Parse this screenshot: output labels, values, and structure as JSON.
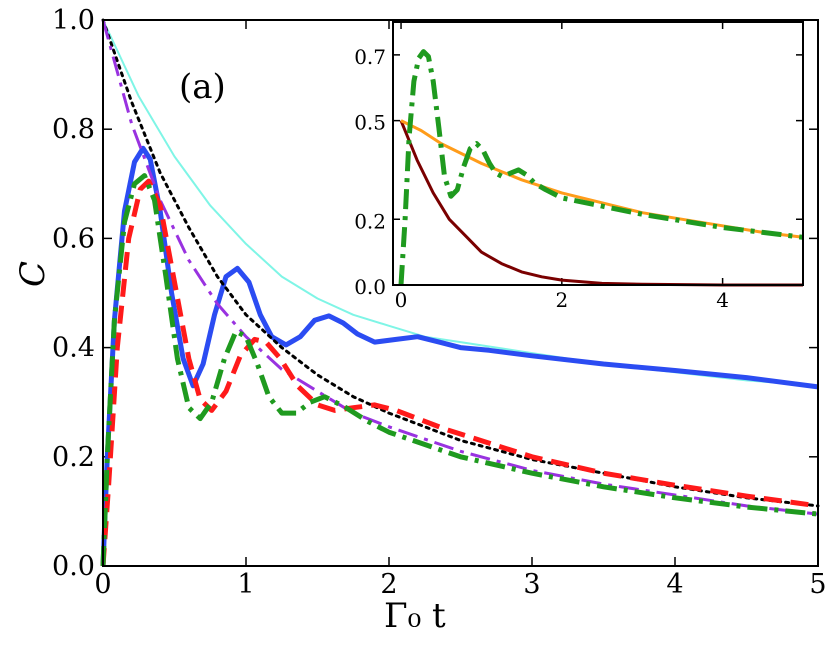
{
  "chart_data": [
    {
      "type": "line",
      "panel": "main",
      "annotation": "(a)",
      "xlabel": "Γ₀ t",
      "ylabel": "C",
      "xlim": [
        0,
        5
      ],
      "ylim": [
        0,
        1
      ],
      "xticks": [
        "0",
        "1",
        "2",
        "3",
        "4",
        "5"
      ],
      "yticks": [
        "0.0",
        "0.2",
        "0.4",
        "0.6",
        "0.8",
        "1.0"
      ],
      "series": [
        {
          "name": "envelope-cyan",
          "color": "#7ff5e6",
          "style": "solid",
          "width": 2,
          "x": [
            0,
            0.25,
            0.5,
            0.75,
            1.0,
            1.25,
            1.5,
            1.75,
            2.0,
            2.25,
            2.5,
            3.0,
            3.5,
            4.0,
            4.5,
            5.0
          ],
          "y": [
            1.0,
            0.86,
            0.75,
            0.66,
            0.59,
            0.53,
            0.49,
            0.46,
            0.44,
            0.42,
            0.41,
            0.39,
            0.37,
            0.355,
            0.34,
            0.33
          ]
        },
        {
          "name": "solid-blue",
          "color": "#2b4cf2",
          "style": "solid",
          "width": 5,
          "x": [
            0,
            0.03,
            0.08,
            0.15,
            0.22,
            0.28,
            0.33,
            0.4,
            0.48,
            0.56,
            0.63,
            0.7,
            0.78,
            0.86,
            0.94,
            1.02,
            1.1,
            1.18,
            1.28,
            1.38,
            1.48,
            1.58,
            1.68,
            1.78,
            1.9,
            2.05,
            2.2,
            2.35,
            2.5,
            2.7,
            3.0,
            3.5,
            4.0,
            4.5,
            5.0
          ],
          "y": [
            0,
            0.2,
            0.45,
            0.65,
            0.74,
            0.765,
            0.745,
            0.65,
            0.5,
            0.38,
            0.33,
            0.37,
            0.46,
            0.53,
            0.545,
            0.52,
            0.46,
            0.42,
            0.405,
            0.42,
            0.45,
            0.458,
            0.445,
            0.425,
            0.41,
            0.415,
            0.42,
            0.41,
            0.4,
            0.395,
            0.385,
            0.37,
            0.358,
            0.345,
            0.328
          ]
        },
        {
          "name": "dotted-black",
          "color": "#000000",
          "style": "dotted",
          "width": 3,
          "x": [
            0,
            0.2,
            0.4,
            0.6,
            0.8,
            1.0,
            1.25,
            1.5,
            1.75,
            2.0,
            2.5,
            3.0,
            3.5,
            4.0,
            4.5,
            5.0
          ],
          "y": [
            1.0,
            0.85,
            0.72,
            0.62,
            0.53,
            0.46,
            0.4,
            0.35,
            0.31,
            0.28,
            0.23,
            0.195,
            0.17,
            0.145,
            0.125,
            0.11
          ]
        },
        {
          "name": "dashdot-purple",
          "color": "#9932e0",
          "style": "dashdot",
          "width": 3,
          "x": [
            0,
            0.2,
            0.4,
            0.6,
            0.8,
            1.0,
            1.25,
            1.5,
            1.75,
            2.0,
            2.5,
            3.0,
            3.5,
            4.0,
            4.5,
            5.0
          ],
          "y": [
            1.0,
            0.81,
            0.67,
            0.56,
            0.48,
            0.42,
            0.36,
            0.32,
            0.28,
            0.255,
            0.21,
            0.175,
            0.15,
            0.13,
            0.11,
            0.095
          ]
        },
        {
          "name": "dashed-red",
          "color": "#ff1a1a",
          "style": "dashed",
          "width": 5,
          "x": [
            0,
            0.04,
            0.1,
            0.18,
            0.26,
            0.32,
            0.4,
            0.5,
            0.6,
            0.68,
            0.76,
            0.86,
            0.96,
            1.06,
            1.14,
            1.24,
            1.36,
            1.5,
            1.62,
            1.75,
            1.9,
            2.05,
            2.2,
            2.4,
            2.7,
            3.0,
            3.5,
            4.0,
            4.5,
            5.0
          ],
          "y": [
            0,
            0.15,
            0.4,
            0.6,
            0.69,
            0.705,
            0.66,
            0.52,
            0.38,
            0.305,
            0.285,
            0.32,
            0.385,
            0.415,
            0.41,
            0.38,
            0.33,
            0.295,
            0.285,
            0.29,
            0.295,
            0.285,
            0.27,
            0.25,
            0.225,
            0.2,
            0.17,
            0.148,
            0.128,
            0.11
          ]
        },
        {
          "name": "dashdot-green",
          "color": "#1f9a1f",
          "style": "dashdot",
          "width": 5,
          "x": [
            0,
            0.03,
            0.08,
            0.15,
            0.22,
            0.29,
            0.36,
            0.44,
            0.52,
            0.6,
            0.68,
            0.76,
            0.85,
            0.93,
            1.0,
            1.08,
            1.16,
            1.25,
            1.35,
            1.45,
            1.55,
            1.7,
            1.85,
            2.0,
            2.5,
            3.0,
            3.5,
            4.0,
            4.5,
            5.0
          ],
          "y": [
            0,
            0.2,
            0.45,
            0.63,
            0.7,
            0.715,
            0.67,
            0.53,
            0.38,
            0.29,
            0.27,
            0.3,
            0.38,
            0.43,
            0.42,
            0.37,
            0.31,
            0.28,
            0.28,
            0.3,
            0.31,
            0.29,
            0.265,
            0.245,
            0.2,
            0.17,
            0.145,
            0.125,
            0.108,
            0.095
          ]
        }
      ]
    },
    {
      "type": "line",
      "panel": "inset",
      "xlim": [
        -0.1,
        5
      ],
      "ylim": [
        0,
        0.8
      ],
      "xticks": [
        "0",
        "2",
        "4"
      ],
      "yticks": [
        "0.0",
        "0.2",
        "0.5",
        "0.7"
      ],
      "series": [
        {
          "name": "solid-darkred",
          "color": "#7a0000",
          "style": "solid",
          "width": 3,
          "x": [
            0,
            0.2,
            0.4,
            0.6,
            0.8,
            1.0,
            1.25,
            1.5,
            1.75,
            2.0,
            2.5,
            3.0,
            4.0,
            5.0
          ],
          "y": [
            0.5,
            0.38,
            0.28,
            0.2,
            0.15,
            0.1,
            0.065,
            0.04,
            0.025,
            0.015,
            0.005,
            0.002,
            0.0,
            0.0
          ]
        },
        {
          "name": "solid-orange",
          "color": "#ff9c1a",
          "style": "solid",
          "width": 3,
          "x": [
            0,
            0.25,
            0.5,
            0.75,
            1.0,
            1.25,
            1.5,
            2.0,
            2.5,
            3.0,
            3.5,
            4.0,
            4.5,
            5.0
          ],
          "y": [
            0.5,
            0.47,
            0.43,
            0.4,
            0.37,
            0.345,
            0.32,
            0.28,
            0.25,
            0.22,
            0.2,
            0.18,
            0.16,
            0.145
          ]
        },
        {
          "name": "dashdot-green",
          "color": "#1f9a1f",
          "style": "dashdot",
          "width": 5,
          "x": [
            0,
            0.05,
            0.1,
            0.16,
            0.22,
            0.28,
            0.34,
            0.4,
            0.47,
            0.54,
            0.62,
            0.7,
            0.78,
            0.86,
            0.94,
            1.02,
            1.1,
            1.18,
            1.26,
            1.36,
            1.46,
            1.56,
            1.66,
            1.8,
            2.0,
            2.5,
            3.0,
            3.5,
            4.0,
            4.5,
            5.0
          ],
          "y": [
            0,
            0.2,
            0.45,
            0.62,
            0.69,
            0.71,
            0.695,
            0.62,
            0.48,
            0.33,
            0.27,
            0.29,
            0.36,
            0.415,
            0.43,
            0.41,
            0.37,
            0.34,
            0.33,
            0.34,
            0.35,
            0.335,
            0.31,
            0.29,
            0.265,
            0.24,
            0.215,
            0.195,
            0.175,
            0.16,
            0.145
          ]
        }
      ]
    }
  ]
}
